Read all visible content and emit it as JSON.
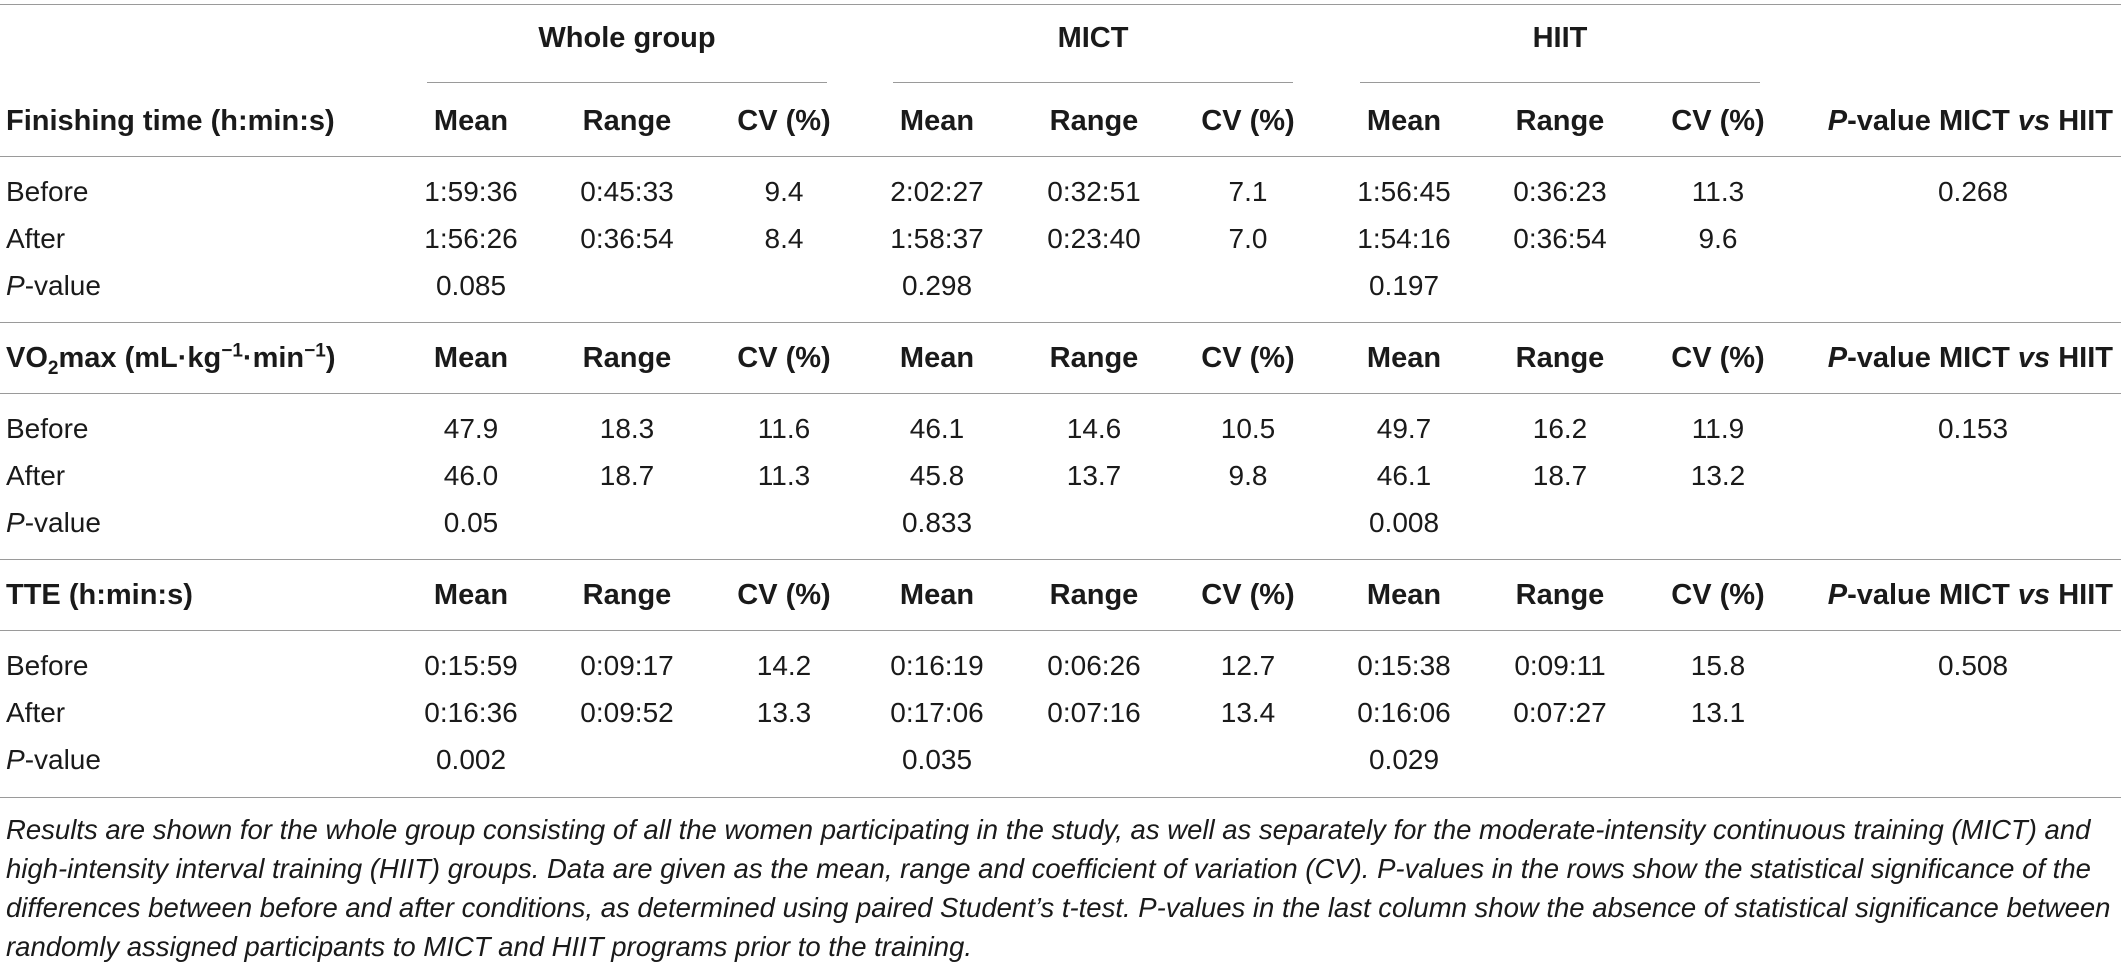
{
  "groups": {
    "whole": "Whole group",
    "mict": "MICT",
    "hiit": "HIIT"
  },
  "col_headers": {
    "mean": "Mean",
    "range": "Range",
    "cv": "CV (%)",
    "pvalue_prefix": "P",
    "pvalue_rest": "-value MICT ",
    "pvalue_vs": "vs",
    "pvalue_end": " HIIT"
  },
  "row_labels": {
    "before": "Before",
    "after": "After",
    "pvalue_prefix": "P",
    "pvalue_rest": "-value"
  },
  "sections": [
    {
      "title": "Finishing time (h:min:s)",
      "before": {
        "whole": [
          "1:59:36",
          "0:45:33",
          "9.4"
        ],
        "mict": [
          "2:02:27",
          "0:32:51",
          "7.1"
        ],
        "hiit": [
          "1:56:45",
          "0:36:23",
          "11.3"
        ],
        "p_mict_vs_hiit": "0.268"
      },
      "after": {
        "whole": [
          "1:56:26",
          "0:36:54",
          "8.4"
        ],
        "mict": [
          "1:58:37",
          "0:23:40",
          "7.0"
        ],
        "hiit": [
          "1:54:16",
          "0:36:54",
          "9.6"
        ]
      },
      "pvalue": {
        "whole": "0.085",
        "mict": "0.298",
        "hiit": "0.197"
      }
    },
    {
      "title_parts": [
        "VO",
        "2",
        "max (mL·kg",
        "−1",
        "·min",
        "−1",
        ")"
      ],
      "before": {
        "whole": [
          "47.9",
          "18.3",
          "11.6"
        ],
        "mict": [
          "46.1",
          "14.6",
          "10.5"
        ],
        "hiit": [
          "49.7",
          "16.2",
          "11.9"
        ],
        "p_mict_vs_hiit": "0.153"
      },
      "after": {
        "whole": [
          "46.0",
          "18.7",
          "11.3"
        ],
        "mict": [
          "45.8",
          "13.7",
          "9.8"
        ],
        "hiit": [
          "46.1",
          "18.7",
          "13.2"
        ]
      },
      "pvalue": {
        "whole": "0.05",
        "mict": "0.833",
        "hiit": "0.008"
      }
    },
    {
      "title": "TTE (h:min:s)",
      "before": {
        "whole": [
          "0:15:59",
          "0:09:17",
          "14.2"
        ],
        "mict": [
          "0:16:19",
          "0:06:26",
          "12.7"
        ],
        "hiit": [
          "0:15:38",
          "0:09:11",
          "15.8"
        ],
        "p_mict_vs_hiit": "0.508"
      },
      "after": {
        "whole": [
          "0:16:36",
          "0:09:52",
          "13.3"
        ],
        "mict": [
          "0:17:06",
          "0:07:16",
          "13.4"
        ],
        "hiit": [
          "0:16:06",
          "0:07:27",
          "13.1"
        ]
      },
      "pvalue": {
        "whole": "0.002",
        "mict": "0.035",
        "hiit": "0.029"
      }
    }
  ],
  "caption": "Results are shown for the whole group consisting of all the women participating in the study, as well as separately for the moderate-intensity continuous training (MICT) and high-intensity interval training (HIIT) groups. Data are given as the mean, range and coefficient of variation (CV). P-values in the rows show the statistical significance of the differences between before and after conditions, as determined using paired Student’s t-test. P-values in the last column show the absence of statistical significance between randomly assigned participants to MICT and HIIT programs prior to the training."
}
